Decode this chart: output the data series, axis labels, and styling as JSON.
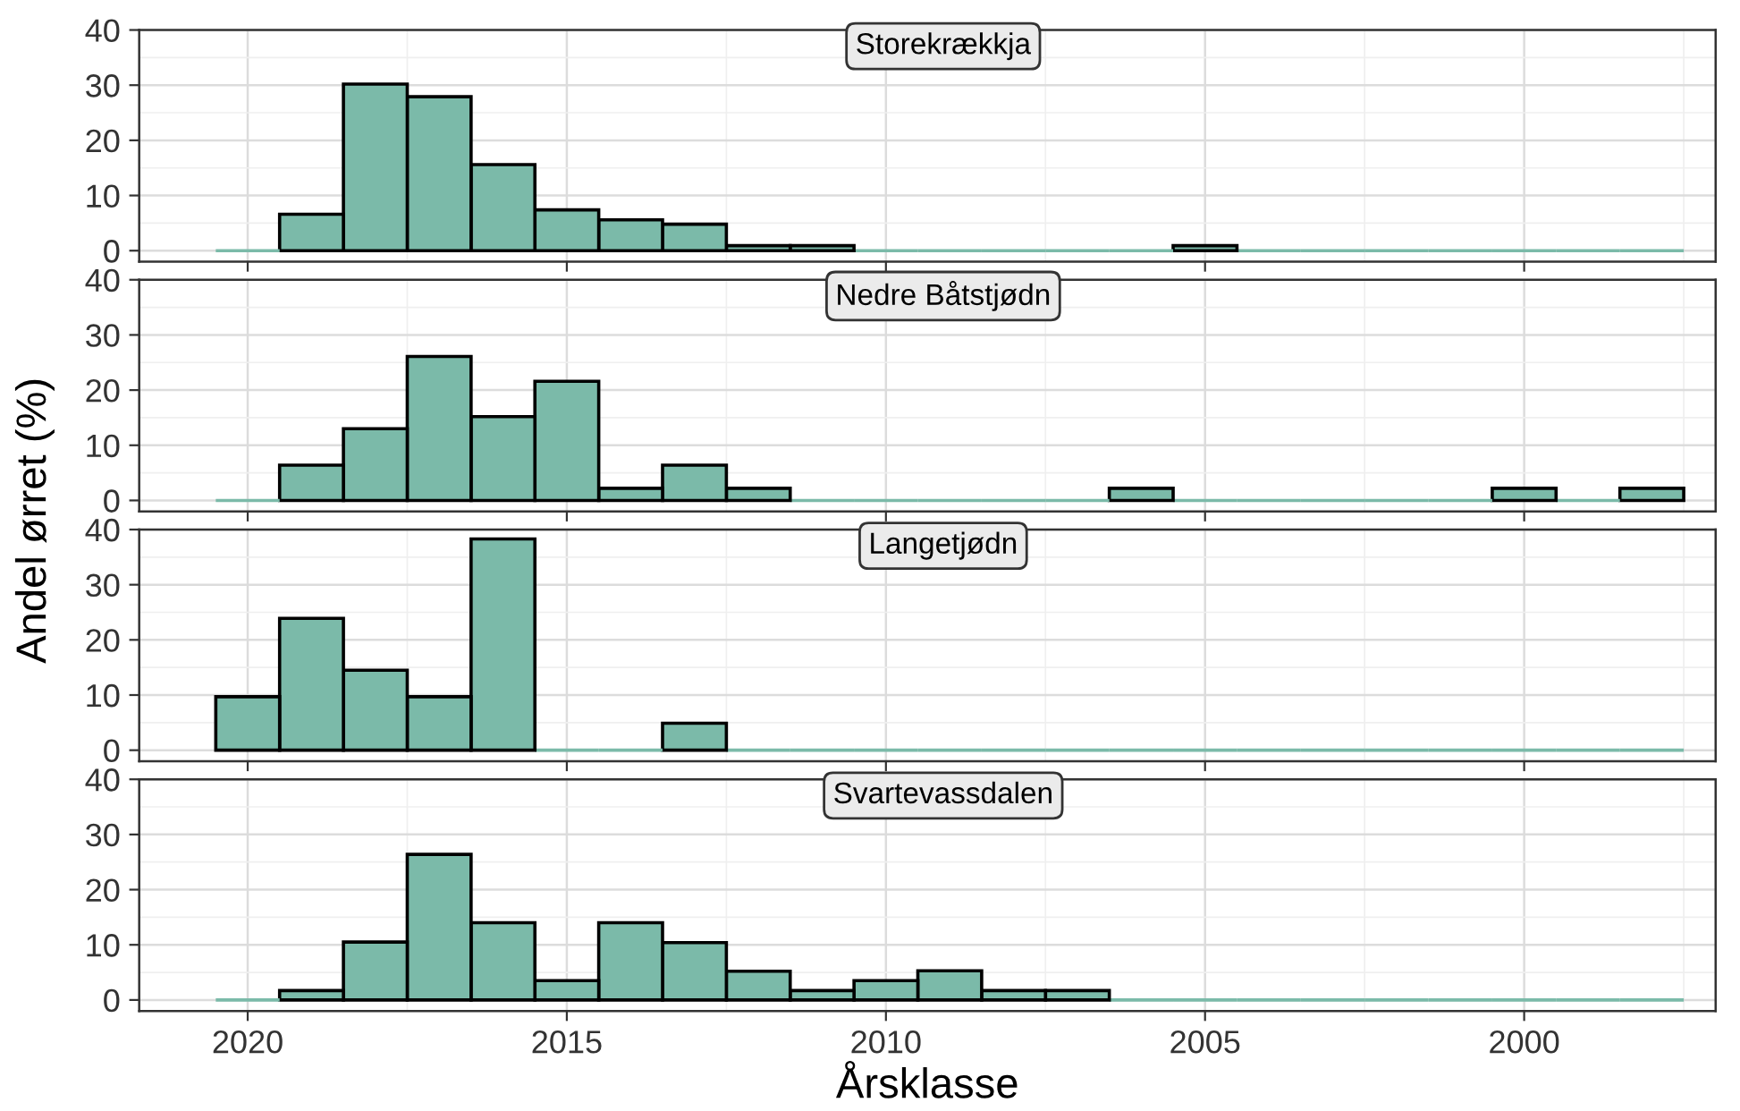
{
  "chart_data": [
    {
      "type": "histogram",
      "title": "Storekrækkja",
      "ylabel": "Andel ørret (%)",
      "color": "#7bbaa9",
      "bins": [
        1997.5,
        1998.5,
        1999.5,
        2000.5,
        2001.5,
        2002.5,
        2003.5,
        2004.5,
        2005.5,
        2006.5,
        2007.5,
        2008.5,
        2009.5,
        2010.5,
        2011.5,
        2012.5,
        2013.5,
        2014.5,
        2015.5,
        2016.5,
        2017.5,
        2018.5,
        2019.5,
        2020.5
      ],
      "values": [
        0,
        0,
        0,
        0,
        0,
        0,
        0,
        0.9,
        0,
        0,
        0,
        0,
        0,
        0.9,
        0.9,
        4.8,
        5.6,
        7.4,
        15.6,
        27.9,
        30.2,
        6.6,
        0
      ],
      "xlim": [
        2021.7,
        1997.0
      ],
      "xticks": [
        2020,
        2015,
        2010,
        2005,
        2000
      ],
      "ylim": [
        -2,
        40
      ],
      "yticks": [
        0,
        10,
        20,
        30,
        40
      ],
      "grid": true,
      "tick_labels": "y"
    },
    {
      "type": "histogram",
      "title": "Nedre Båtstjødn",
      "color": "#7bbaa9",
      "bins": [
        1997.5,
        1998.5,
        1999.5,
        2000.5,
        2001.5,
        2002.5,
        2003.5,
        2004.5,
        2005.5,
        2006.5,
        2007.5,
        2008.5,
        2009.5,
        2010.5,
        2011.5,
        2012.5,
        2013.5,
        2014.5,
        2015.5,
        2016.5,
        2017.5,
        2018.5,
        2019.5,
        2020.5
      ],
      "values": [
        2.2,
        0,
        2.2,
        0,
        0,
        0,
        0,
        0,
        2.2,
        0,
        0,
        0,
        0,
        0,
        2.2,
        6.4,
        2.2,
        21.6,
        15.2,
        26.1,
        13.0,
        6.4,
        0
      ],
      "xlim": [
        2021.7,
        1997.0
      ],
      "xticks": [
        2020,
        2015,
        2010,
        2005,
        2000
      ],
      "ylim": [
        -2,
        40
      ],
      "yticks": [
        0,
        10,
        20,
        30,
        40
      ],
      "grid": true,
      "tick_labels": "y"
    },
    {
      "type": "histogram",
      "title": "Langetjødn",
      "color": "#7bbaa9",
      "bins": [
        1997.5,
        1998.5,
        1999.5,
        2000.5,
        2001.5,
        2002.5,
        2003.5,
        2004.5,
        2005.5,
        2006.5,
        2007.5,
        2008.5,
        2009.5,
        2010.5,
        2011.5,
        2012.5,
        2013.5,
        2014.5,
        2015.5,
        2016.5,
        2017.5,
        2018.5,
        2019.5,
        2020.5
      ],
      "values": [
        0,
        0,
        0,
        0,
        0,
        0,
        0,
        0,
        0,
        0,
        0,
        0,
        0,
        0,
        0,
        4.9,
        0,
        0,
        38.3,
        9.7,
        14.5,
        23.9,
        9.7
      ],
      "xlim": [
        2021.7,
        1997.0
      ],
      "xticks": [
        2020,
        2015,
        2010,
        2005,
        2000
      ],
      "ylim": [
        -2,
        40
      ],
      "yticks": [
        0,
        10,
        20,
        30,
        40
      ],
      "grid": true,
      "tick_labels": "y"
    },
    {
      "type": "histogram",
      "title": "Svartevassdalen",
      "xlabel": "Årsklasse",
      "color": "#7bbaa9",
      "bins": [
        1997.5,
        1998.5,
        1999.5,
        2000.5,
        2001.5,
        2002.5,
        2003.5,
        2004.5,
        2005.5,
        2006.5,
        2007.5,
        2008.5,
        2009.5,
        2010.5,
        2011.5,
        2012.5,
        2013.5,
        2014.5,
        2015.5,
        2016.5,
        2017.5,
        2018.5,
        2019.5,
        2020.5
      ],
      "values": [
        0,
        0,
        0,
        0,
        0,
        0,
        0,
        0,
        0,
        1.7,
        1.7,
        5.3,
        3.5,
        1.7,
        5.2,
        10.4,
        14.0,
        3.5,
        14.0,
        26.4,
        10.5,
        1.7,
        0
      ],
      "xlim": [
        2021.7,
        1997.0
      ],
      "xticks": [
        2020,
        2015,
        2010,
        2005,
        2000
      ],
      "ylim": [
        -2,
        40
      ],
      "yticks": [
        0,
        10,
        20,
        30,
        40
      ],
      "grid": true
    }
  ]
}
